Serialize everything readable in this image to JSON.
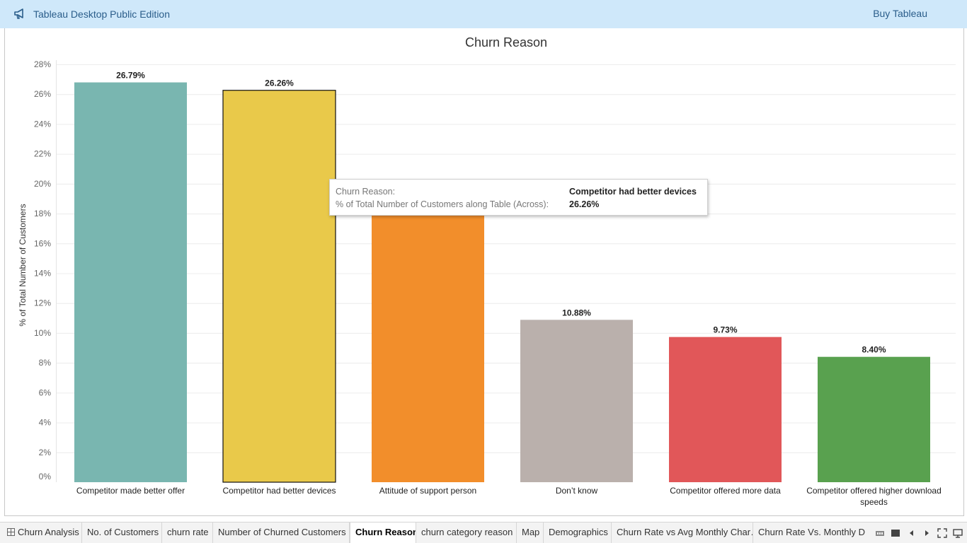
{
  "app": {
    "title": "Tableau Desktop Public Edition",
    "buy_label": "Buy Tableau"
  },
  "chart_data": {
    "type": "bar",
    "title": "Churn Reason",
    "ylabel": "% of Total Number of Customers",
    "xlabel": "",
    "ylim": [
      0,
      28
    ],
    "yticks": [
      0,
      2,
      4,
      6,
      8,
      10,
      12,
      14,
      16,
      18,
      20,
      22,
      24,
      26,
      28
    ],
    "categories": [
      [
        "Competitor made better offer"
      ],
      [
        "Competitor had better devices"
      ],
      [
        "Attitude of support person"
      ],
      [
        "Don’t know"
      ],
      [
        "Competitor offered more data"
      ],
      [
        "Competitor offered higher download",
        "speeds"
      ]
    ],
    "values": [
      26.79,
      26.26,
      18.0,
      10.88,
      9.73,
      8.4
    ],
    "data_labels": [
      "26.79%",
      "26.26%",
      "",
      "10.88%",
      "9.73%",
      "8.40%"
    ],
    "colors": [
      "#79b6b0",
      "#e9c94a",
      "#f28e2b",
      "#bab0ac",
      "#e15759",
      "#59a14f"
    ],
    "highlighted_index": 1,
    "grid": true
  },
  "tooltip": {
    "rows": [
      {
        "key": "Churn Reason:",
        "value": "Competitor had better devices"
      },
      {
        "key": "% of Total Number of Customers along Table (Across):",
        "value": "26.26%"
      }
    ]
  },
  "tabs": [
    {
      "label": "Churn Analysis",
      "icon": "grid-icon",
      "active": false
    },
    {
      "label": "No. of Customers",
      "active": false
    },
    {
      "label": "churn rate",
      "active": false
    },
    {
      "label": "Number of Churned Customers",
      "active": false
    },
    {
      "label": "Churn Reason",
      "active": true
    },
    {
      "label": "churn category reason",
      "active": false
    },
    {
      "label": "Map",
      "active": false
    },
    {
      "label": "Demographics",
      "active": false
    },
    {
      "label": "Churn Rate vs Avg Monthly Char…",
      "active": false
    },
    {
      "label": "Churn Rate Vs. Monthly Dat",
      "active": false
    }
  ],
  "controls": [
    "filmstrip-icon",
    "single-sheet-icon",
    "prev-sheet-icon",
    "next-sheet-icon",
    "fullscreen-icon",
    "presentation-icon"
  ]
}
